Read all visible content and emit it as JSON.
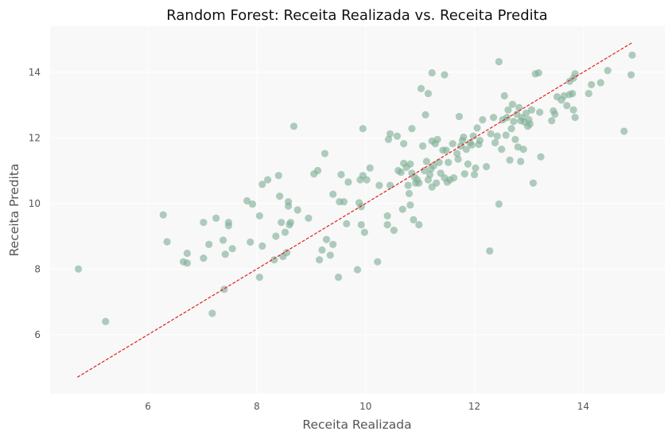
{
  "chart_data": {
    "type": "scatter",
    "title": "Random Forest: Receita Realizada vs. Receita Predita",
    "xlabel": "Receita Realizada",
    "ylabel": "Receita Predita",
    "xlim": [
      4.2,
      15.5
    ],
    "ylim": [
      4.2,
      15.4
    ],
    "xticks": [
      6,
      8,
      10,
      12,
      14
    ],
    "yticks": [
      6,
      8,
      10,
      12,
      14
    ],
    "grid": true,
    "point_color": "#7fb096",
    "reference_line": {
      "x": [
        4.7,
        14.9
      ],
      "y": [
        4.7,
        14.9
      ],
      "color": "#e02020",
      "style": "dashed"
    },
    "points": [
      [
        4.72,
        8.0
      ],
      [
        5.22,
        6.4
      ],
      [
        6.28,
        9.65
      ],
      [
        6.35,
        8.83
      ],
      [
        6.65,
        8.22
      ],
      [
        6.72,
        8.18
      ],
      [
        6.72,
        8.48
      ],
      [
        7.02,
        9.42
      ],
      [
        7.02,
        8.33
      ],
      [
        7.12,
        8.75
      ],
      [
        7.18,
        6.65
      ],
      [
        7.25,
        9.55
      ],
      [
        7.38,
        8.88
      ],
      [
        7.4,
        7.38
      ],
      [
        7.42,
        8.45
      ],
      [
        7.48,
        9.32
      ],
      [
        7.48,
        9.42
      ],
      [
        7.55,
        8.62
      ],
      [
        7.82,
        10.08
      ],
      [
        7.88,
        8.82
      ],
      [
        7.92,
        9.98
      ],
      [
        8.05,
        7.75
      ],
      [
        8.05,
        9.62
      ],
      [
        8.1,
        10.58
      ],
      [
        8.1,
        8.7
      ],
      [
        8.2,
        10.72
      ],
      [
        8.32,
        8.28
      ],
      [
        8.35,
        9.0
      ],
      [
        8.4,
        10.85
      ],
      [
        8.42,
        10.22
      ],
      [
        8.45,
        9.42
      ],
      [
        8.48,
        8.38
      ],
      [
        8.52,
        9.12
      ],
      [
        8.55,
        8.5
      ],
      [
        8.58,
        9.92
      ],
      [
        8.6,
        9.35
      ],
      [
        8.58,
        10.05
      ],
      [
        8.62,
        9.42
      ],
      [
        8.68,
        12.35
      ],
      [
        8.75,
        9.8
      ],
      [
        8.95,
        9.55
      ],
      [
        9.05,
        10.9
      ],
      [
        9.12,
        11.0
      ],
      [
        9.15,
        8.28
      ],
      [
        9.2,
        8.58
      ],
      [
        9.25,
        11.52
      ],
      [
        9.28,
        8.9
      ],
      [
        9.35,
        8.42
      ],
      [
        9.4,
        8.75
      ],
      [
        9.4,
        10.28
      ],
      [
        9.5,
        7.75
      ],
      [
        9.52,
        10.05
      ],
      [
        9.55,
        10.88
      ],
      [
        9.6,
        10.05
      ],
      [
        9.65,
        9.38
      ],
      [
        9.68,
        10.65
      ],
      [
        9.85,
        7.98
      ],
      [
        9.88,
        10.02
      ],
      [
        9.9,
        10.72
      ],
      [
        9.92,
        9.35
      ],
      [
        9.92,
        9.9
      ],
      [
        9.95,
        12.28
      ],
      [
        9.95,
        10.85
      ],
      [
        9.98,
        9.12
      ],
      [
        10.02,
        10.72
      ],
      [
        10.08,
        11.08
      ],
      [
        10.22,
        8.22
      ],
      [
        10.25,
        10.55
      ],
      [
        10.4,
        9.35
      ],
      [
        10.4,
        9.62
      ],
      [
        10.42,
        11.95
      ],
      [
        10.45,
        12.12
      ],
      [
        10.45,
        10.55
      ],
      [
        10.52,
        9.18
      ],
      [
        10.58,
        12.05
      ],
      [
        10.6,
        11.0
      ],
      [
        10.65,
        10.95
      ],
      [
        10.68,
        9.82
      ],
      [
        10.7,
        11.22
      ],
      [
        10.7,
        11.82
      ],
      [
        10.75,
        11.1
      ],
      [
        10.78,
        10.55
      ],
      [
        10.8,
        10.3
      ],
      [
        10.82,
        11.2
      ],
      [
        10.82,
        9.95
      ],
      [
        10.85,
        12.28
      ],
      [
        10.85,
        10.92
      ],
      [
        10.88,
        9.5
      ],
      [
        10.9,
        10.8
      ],
      [
        10.92,
        10.62
      ],
      [
        10.95,
        10.72
      ],
      [
        10.98,
        10.62
      ],
      [
        10.98,
        9.35
      ],
      [
        11.02,
        13.5
      ],
      [
        11.05,
        11.75
      ],
      [
        11.08,
        11.0
      ],
      [
        11.1,
        12.7
      ],
      [
        11.12,
        11.28
      ],
      [
        11.15,
        13.35
      ],
      [
        11.15,
        10.72
      ],
      [
        11.18,
        10.88
      ],
      [
        11.2,
        11.05
      ],
      [
        11.22,
        11.9
      ],
      [
        11.22,
        10.5
      ],
      [
        11.25,
        11.15
      ],
      [
        11.28,
        11.82
      ],
      [
        11.3,
        10.62
      ],
      [
        11.32,
        11.95
      ],
      [
        11.35,
        11.25
      ],
      [
        11.38,
        10.92
      ],
      [
        11.42,
        11.62
      ],
      [
        11.45,
        10.78
      ],
      [
        11.48,
        11.62
      ],
      [
        11.52,
        11.25
      ],
      [
        11.22,
        13.98
      ],
      [
        11.45,
        13.92
      ],
      [
        11.5,
        10.65
      ],
      [
        11.55,
        10.72
      ],
      [
        11.6,
        11.82
      ],
      [
        11.62,
        10.78
      ],
      [
        11.68,
        11.52
      ],
      [
        11.7,
        11.35
      ],
      [
        11.72,
        12.65
      ],
      [
        11.75,
        11.75
      ],
      [
        11.78,
        11.92
      ],
      [
        11.8,
        12.02
      ],
      [
        11.82,
        10.9
      ],
      [
        11.85,
        11.65
      ],
      [
        11.88,
        11.2
      ],
      [
        11.92,
        11.85
      ],
      [
        11.95,
        11.78
      ],
      [
        11.98,
        12.05
      ],
      [
        12.0,
        10.88
      ],
      [
        12.02,
        11.08
      ],
      [
        12.05,
        12.3
      ],
      [
        12.08,
        11.8
      ],
      [
        12.1,
        11.92
      ],
      [
        12.15,
        12.55
      ],
      [
        12.22,
        11.12
      ],
      [
        12.28,
        8.55
      ],
      [
        12.3,
        12.12
      ],
      [
        12.35,
        12.62
      ],
      [
        12.38,
        11.85
      ],
      [
        12.42,
        12.05
      ],
      [
        12.45,
        14.32
      ],
      [
        12.45,
        9.98
      ],
      [
        12.5,
        11.65
      ],
      [
        12.52,
        12.55
      ],
      [
        12.55,
        13.28
      ],
      [
        12.58,
        12.08
      ],
      [
        12.6,
        12.62
      ],
      [
        12.62,
        12.85
      ],
      [
        12.65,
        11.32
      ],
      [
        12.68,
        12.28
      ],
      [
        12.7,
        13.02
      ],
      [
        12.72,
        12.5
      ],
      [
        12.75,
        11.95
      ],
      [
        12.78,
        12.72
      ],
      [
        12.8,
        11.72
      ],
      [
        12.82,
        12.92
      ],
      [
        12.85,
        12.52
      ],
      [
        12.85,
        11.28
      ],
      [
        12.88,
        12.62
      ],
      [
        12.9,
        11.65
      ],
      [
        12.92,
        12.48
      ],
      [
        12.95,
        12.75
      ],
      [
        12.98,
        12.35
      ],
      [
        13.0,
        12.55
      ],
      [
        13.02,
        12.42
      ],
      [
        13.05,
        12.85
      ],
      [
        13.08,
        10.62
      ],
      [
        13.12,
        13.95
      ],
      [
        13.18,
        13.98
      ],
      [
        13.2,
        12.78
      ],
      [
        13.22,
        11.42
      ],
      [
        13.42,
        12.52
      ],
      [
        13.45,
        12.82
      ],
      [
        13.48,
        12.72
      ],
      [
        13.52,
        13.25
      ],
      [
        13.6,
        13.15
      ],
      [
        13.65,
        13.28
      ],
      [
        13.7,
        12.98
      ],
      [
        13.75,
        13.72
      ],
      [
        13.75,
        13.32
      ],
      [
        13.8,
        13.35
      ],
      [
        13.82,
        13.82
      ],
      [
        13.85,
        13.95
      ],
      [
        13.85,
        12.62
      ],
      [
        13.82,
        12.85
      ],
      [
        14.1,
        13.35
      ],
      [
        14.15,
        13.62
      ],
      [
        14.32,
        13.68
      ],
      [
        14.45,
        14.05
      ],
      [
        14.75,
        12.2
      ],
      [
        14.88,
        13.92
      ],
      [
        14.9,
        14.52
      ]
    ]
  }
}
